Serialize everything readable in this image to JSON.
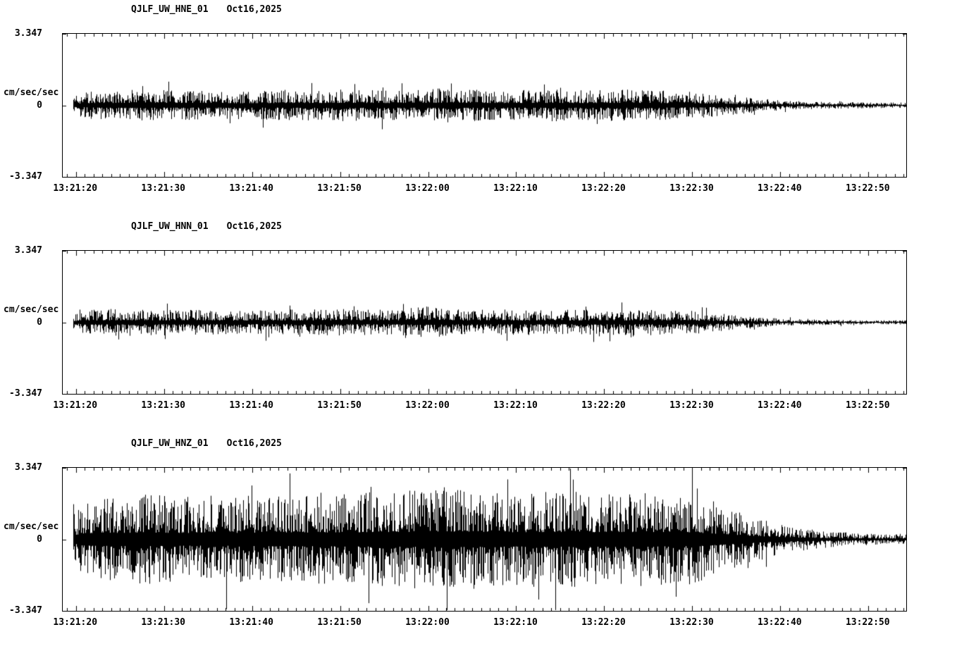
{
  "page": {
    "background": "#ffffff",
    "text_color": "#000000"
  },
  "chart_data": [
    {
      "type": "line",
      "title": "QJLF_UW_HNE_01   Oct16,2025",
      "station": "QJLF_UW_HNE_01",
      "date": "Oct16,2025",
      "ylabel": "cm/sec/sec",
      "ylim": [
        -3.347,
        3.347
      ],
      "yticks": [
        3.347,
        0,
        -3.347
      ],
      "ytick_labels": [
        "3.347",
        "0",
        "-3.347"
      ],
      "x_tick_labels": [
        "13:21:20",
        "13:21:30",
        "13:21:40",
        "13:21:50",
        "13:22:00",
        "13:22:10",
        "13:22:20",
        "13:22:30",
        "13:22:40",
        "13:22:50"
      ],
      "x_tick_seconds": [
        0,
        10,
        20,
        30,
        40,
        50,
        60,
        70,
        80,
        90
      ],
      "x_minor_tick_seconds": 1,
      "x_range_seconds": [
        -1.5,
        94.3
      ],
      "trace_range_seconds": [
        -0.3,
        94.3
      ],
      "grid": false,
      "line_color": "#000000",
      "envelope": {
        "t": [
          -0.3,
          2,
          6,
          12,
          18,
          24,
          30,
          36,
          42,
          48,
          54,
          58,
          62,
          66,
          70,
          73,
          76,
          79,
          82,
          86,
          90,
          94.3
        ],
        "amp": [
          0.45,
          0.7,
          0.75,
          0.7,
          0.65,
          0.7,
          0.75,
          0.7,
          0.8,
          0.7,
          0.75,
          0.7,
          0.75,
          0.7,
          0.65,
          0.5,
          0.38,
          0.28,
          0.2,
          0.16,
          0.14,
          0.13
        ]
      }
    },
    {
      "type": "line",
      "title": "QJLF_UW_HNN_01   Oct16,2025",
      "station": "QJLF_UW_HNN_01",
      "date": "Oct16,2025",
      "ylabel": "cm/sec/sec",
      "ylim": [
        -3.347,
        3.347
      ],
      "yticks": [
        3.347,
        0,
        -3.347
      ],
      "ytick_labels": [
        "3.347",
        "0",
        "-3.347"
      ],
      "x_tick_labels": [
        "13:21:20",
        "13:21:30",
        "13:21:40",
        "13:21:50",
        "13:22:00",
        "13:22:10",
        "13:22:20",
        "13:22:30",
        "13:22:40",
        "13:22:50"
      ],
      "x_tick_seconds": [
        0,
        10,
        20,
        30,
        40,
        50,
        60,
        70,
        80,
        90
      ],
      "x_minor_tick_seconds": 1,
      "x_range_seconds": [
        -1.5,
        94.3
      ],
      "trace_range_seconds": [
        -0.3,
        94.3
      ],
      "grid": false,
      "line_color": "#000000",
      "envelope": {
        "t": [
          -0.3,
          2,
          6,
          12,
          18,
          24,
          30,
          36,
          40,
          44,
          48,
          54,
          58,
          62,
          66,
          70,
          73,
          76,
          79,
          82,
          86,
          90,
          94.3
        ],
        "amp": [
          0.4,
          0.6,
          0.65,
          0.6,
          0.55,
          0.6,
          0.62,
          0.6,
          0.75,
          0.6,
          0.62,
          0.58,
          0.6,
          0.62,
          0.6,
          0.55,
          0.42,
          0.3,
          0.2,
          0.15,
          0.12,
          0.1,
          0.1
        ]
      }
    },
    {
      "type": "line",
      "title": "QJLF_UW_HNZ_01   Oct16,2025",
      "station": "QJLF_UW_HNZ_01",
      "date": "Oct16,2025",
      "ylabel": "cm/sec/sec",
      "ylim": [
        -3.347,
        3.347
      ],
      "yticks": [
        3.347,
        0,
        -3.347
      ],
      "ytick_labels": [
        "3.347",
        "0",
        "-3.347"
      ],
      "x_tick_labels": [
        "13:21:20",
        "13:21:30",
        "13:21:40",
        "13:21:50",
        "13:22:00",
        "13:22:10",
        "13:22:20",
        "13:22:30",
        "13:22:40",
        "13:22:50"
      ],
      "x_tick_seconds": [
        0,
        10,
        20,
        30,
        40,
        50,
        60,
        70,
        80,
        90
      ],
      "x_minor_tick_seconds": 1,
      "x_range_seconds": [
        -1.5,
        94.3
      ],
      "trace_range_seconds": [
        -0.3,
        94.3
      ],
      "grid": false,
      "line_color": "#000000",
      "envelope": {
        "t": [
          -0.3,
          1,
          4,
          8,
          14,
          20,
          26,
          32,
          38,
          42,
          46,
          50,
          54,
          58,
          62,
          66,
          70,
          73,
          76,
          79,
          82,
          85,
          88,
          91,
          94.3
        ],
        "amp": [
          1.2,
          1.9,
          2.0,
          2.1,
          1.95,
          2.05,
          2.1,
          2.2,
          2.3,
          2.45,
          2.3,
          2.2,
          2.3,
          2.2,
          2.25,
          2.2,
          2.1,
          1.7,
          1.2,
          0.8,
          0.55,
          0.4,
          0.3,
          0.25,
          0.22
        ]
      }
    }
  ]
}
